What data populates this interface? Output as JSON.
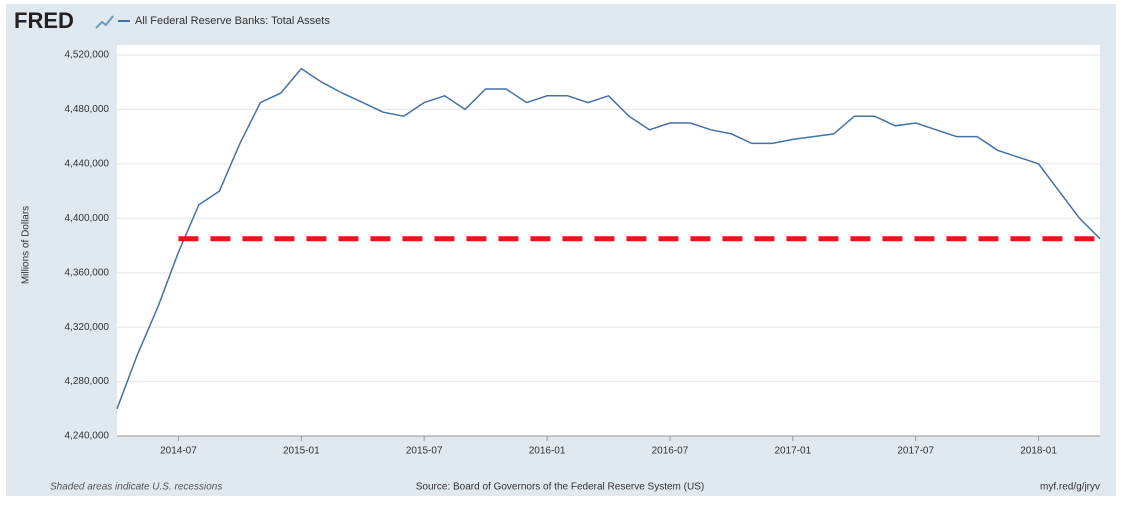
{
  "chart_data": {
    "type": "line",
    "brand": "FRED",
    "ylabel": "Millions of Dollars",
    "note": "Shaded areas indicate U.S. recessions",
    "source": "Source: Board of Governors of the Federal Reserve System (US)",
    "link": "myf.red/g/jryv",
    "x": [
      "2014-04",
      "2014-05",
      "2014-06",
      "2014-07",
      "2014-08",
      "2014-09",
      "2014-10",
      "2014-11",
      "2014-12",
      "2015-01",
      "2015-02",
      "2015-03",
      "2015-04",
      "2015-05",
      "2015-06",
      "2015-07",
      "2015-08",
      "2015-09",
      "2015-10",
      "2015-11",
      "2015-12",
      "2016-01",
      "2016-02",
      "2016-03",
      "2016-04",
      "2016-05",
      "2016-06",
      "2016-07",
      "2016-08",
      "2016-09",
      "2016-10",
      "2016-11",
      "2016-12",
      "2017-01",
      "2017-02",
      "2017-03",
      "2017-04",
      "2017-05",
      "2017-06",
      "2017-07",
      "2017-08",
      "2017-09",
      "2017-10",
      "2017-11",
      "2017-12",
      "2018-01",
      "2018-02",
      "2018-03",
      "2018-04"
    ],
    "series": [
      {
        "name": "All Federal Reserve Banks: Total Assets",
        "color": "#4572a7",
        "values": [
          4260000,
          4300000,
          4335000,
          4375000,
          4410000,
          4420000,
          4455000,
          4485000,
          4492000,
          4510000,
          4500000,
          4492000,
          4485000,
          4478000,
          4475000,
          4485000,
          4490000,
          4480000,
          4495000,
          4495000,
          4485000,
          4490000,
          4490000,
          4485000,
          4490000,
          4475000,
          4465000,
          4470000,
          4470000,
          4465000,
          4462000,
          4455000,
          4455000,
          4458000,
          4460000,
          4462000,
          4475000,
          4475000,
          4468000,
          4470000,
          4465000,
          4460000,
          4460000,
          4450000,
          4445000,
          4440000,
          4420000,
          4400000,
          4385000
        ]
      }
    ],
    "reference_line": {
      "value": 4385000,
      "from": "2014-07",
      "to": "2018-04",
      "color": "#e8141c"
    },
    "xlim": [
      "2014-04",
      "2018-04"
    ],
    "xticks": [
      "2014-07",
      "2015-01",
      "2015-07",
      "2016-01",
      "2016-07",
      "2017-01",
      "2017-07",
      "2018-01"
    ],
    "ylim": [
      4240000,
      4520000
    ],
    "yticks": [
      {
        "value": 4240000,
        "label": "4,240,000"
      },
      {
        "value": 4280000,
        "label": "4,280,000"
      },
      {
        "value": 4320000,
        "label": "4,320,000"
      },
      {
        "value": 4360000,
        "label": "4,360,000"
      },
      {
        "value": 4400000,
        "label": "4,400,000"
      },
      {
        "value": 4440000,
        "label": "4,440,000"
      },
      {
        "value": 4480000,
        "label": "4,480,000"
      },
      {
        "value": 4520000,
        "label": "4,520,000"
      }
    ],
    "grid": true
  }
}
